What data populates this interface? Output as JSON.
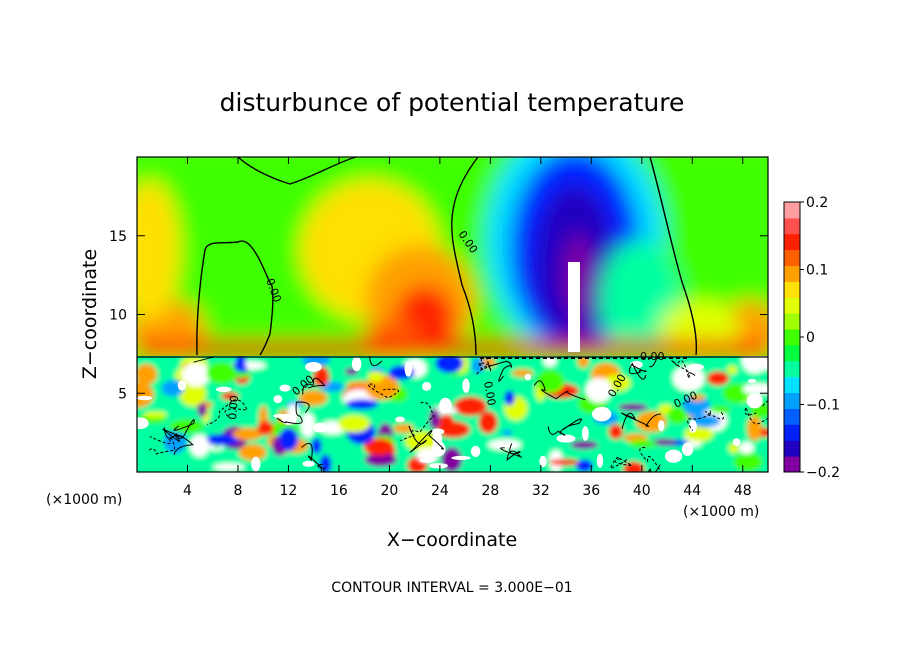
{
  "chart_data": {
    "type": "heatmap",
    "title": "disturbunce of potential temperature",
    "xlabel": "X−coordinate",
    "ylabel": "Z−coordinate",
    "x_unit_left": "(×1000 m)",
    "x_unit_right": "(×1000 m)",
    "footer": "CONTOUR INTERVAL = 3.000E−01",
    "x_ticks": [
      "4",
      "8",
      "12",
      "16",
      "20",
      "24",
      "28",
      "32",
      "36",
      "40",
      "44",
      "48"
    ],
    "y_ticks": [
      "5",
      "10",
      "15"
    ],
    "xlim": [
      0,
      50
    ],
    "ylim": [
      0,
      20
    ],
    "colorbar": {
      "min": -0.2,
      "max": 0.2,
      "ticks": [
        "0.2",
        "0.1",
        "0",
        "−0.1",
        "−0.2"
      ],
      "colors": [
        "#8000a0",
        "#2000c0",
        "#0020ff",
        "#0060ff",
        "#00a0ff",
        "#00e0ff",
        "#00ffa0",
        "#00ff40",
        "#40ff00",
        "#a0ff00",
        "#e0ff00",
        "#ffe000",
        "#ffa000",
        "#ff6000",
        "#ff2000",
        "#ff5050",
        "#ffa0a0"
      ]
    },
    "contour_labels": [
      "0.00",
      "0.00",
      "0.00",
      "0.00",
      "0.00",
      "0.00",
      "0.00",
      "0.00"
    ],
    "grid": false
  }
}
